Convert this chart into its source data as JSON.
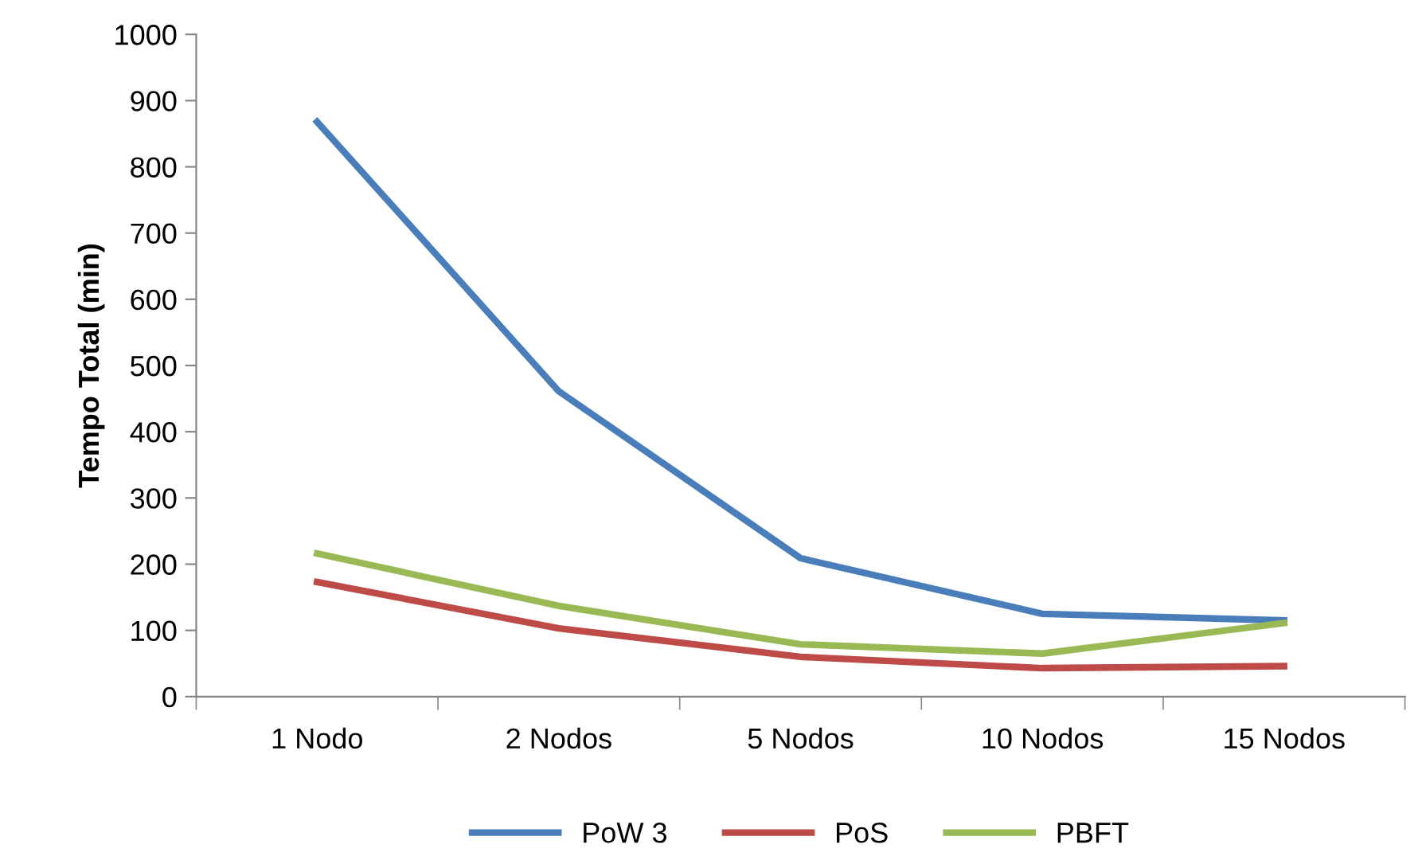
{
  "chart_data": {
    "type": "line",
    "ylabel": "Tempo Total (min)",
    "categories": [
      "1 Nodo",
      "2 Nodos",
      "5 Nodos",
      "10 Nodos",
      "15 Nodos"
    ],
    "series": [
      {
        "name": "PoW 3",
        "color": "#4a7ebb",
        "values": [
          868,
          461,
          209,
          125,
          115
        ]
      },
      {
        "name": "PoS",
        "color": "#be4b48",
        "values": [
          173,
          103,
          60,
          43,
          46
        ]
      },
      {
        "name": "PBFT",
        "color": "#98b954",
        "values": [
          216,
          137,
          79,
          65,
          111
        ]
      }
    ],
    "ylim": [
      0,
      1000
    ],
    "yticks": [
      0,
      100,
      200,
      300,
      400,
      500,
      600,
      700,
      800,
      900,
      1000
    ],
    "grid": false,
    "legend": "bottom",
    "marker": "none",
    "line_style": "solid"
  }
}
